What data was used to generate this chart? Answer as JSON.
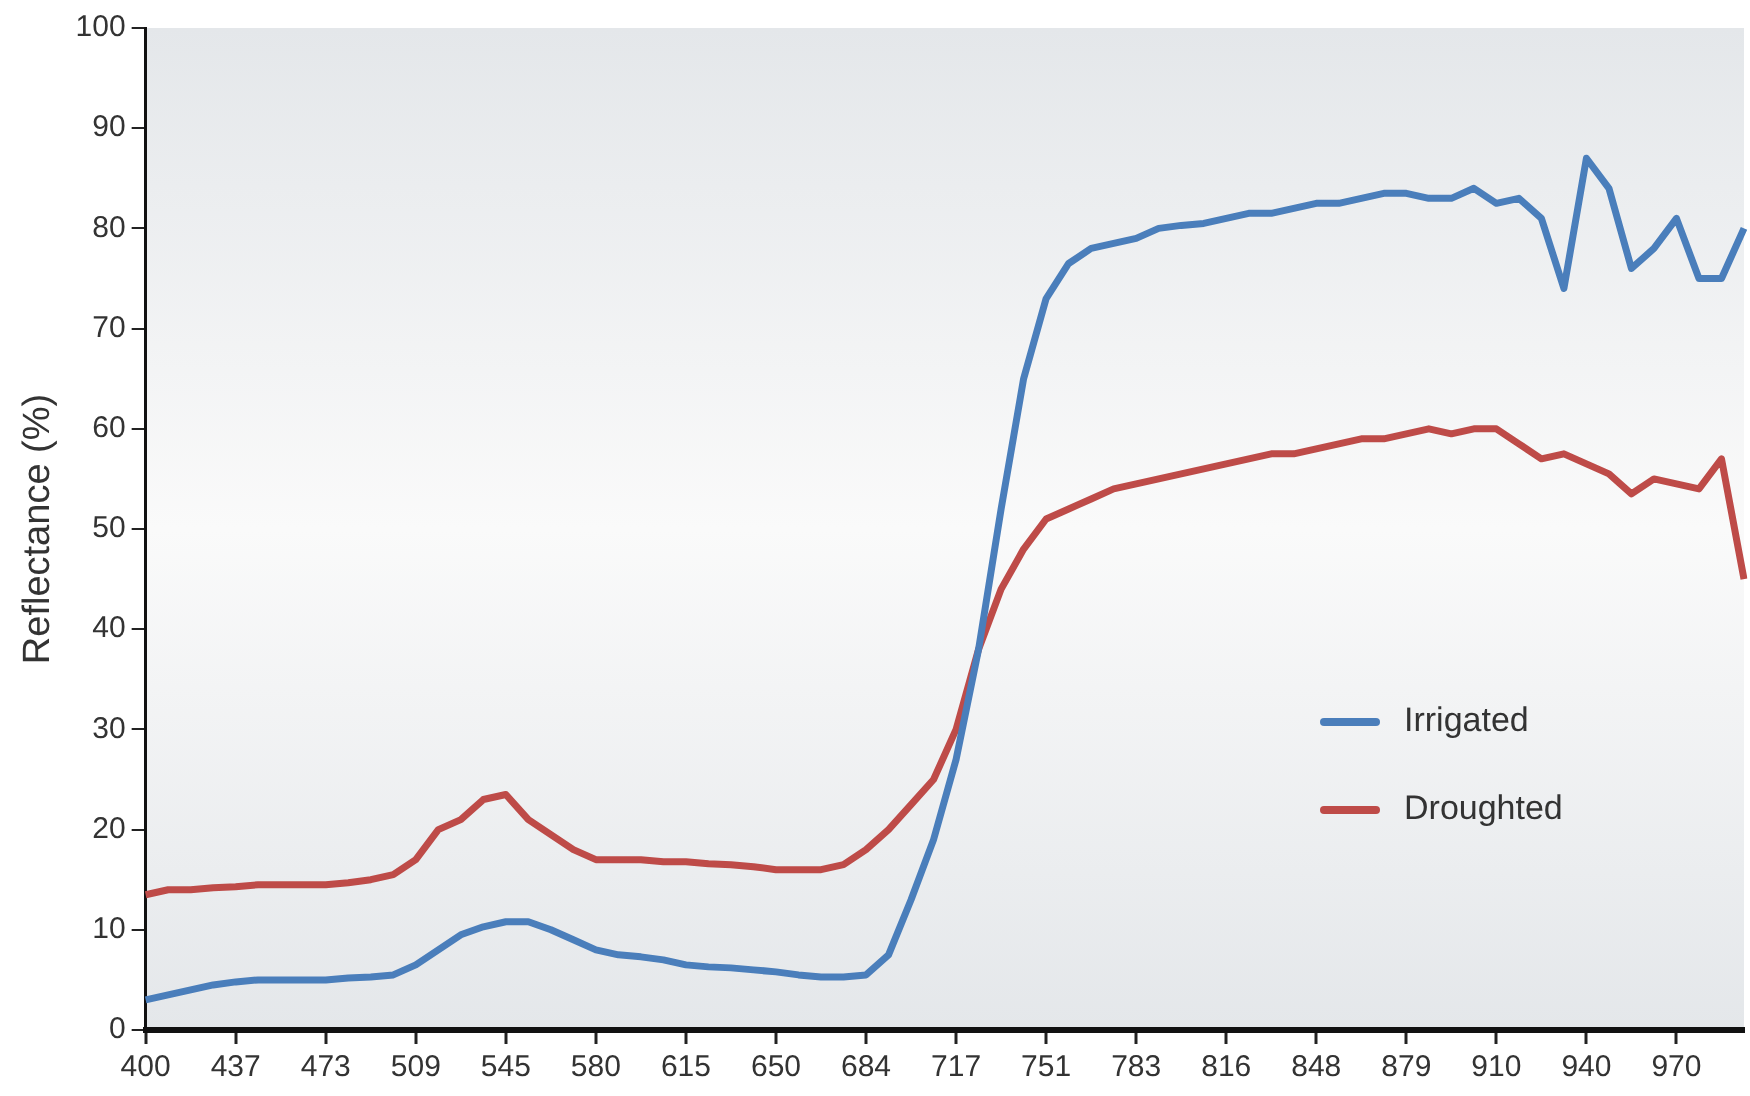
{
  "chart_data": {
    "type": "line",
    "ylabel": "Reflectance (%)",
    "categories": [
      "400",
      null,
      null,
      null,
      "437",
      null,
      null,
      null,
      "473",
      null,
      null,
      null,
      "509",
      null,
      null,
      null,
      "545",
      null,
      null,
      null,
      "580",
      null,
      null,
      null,
      "615",
      null,
      null,
      null,
      "650",
      null,
      null,
      null,
      "684",
      null,
      null,
      null,
      "717",
      null,
      null,
      null,
      "751",
      null,
      null,
      null,
      "783",
      null,
      null,
      null,
      "816",
      null,
      null,
      null,
      "848",
      null,
      null,
      null,
      "879",
      null,
      null,
      null,
      "910",
      null,
      null,
      null,
      "940",
      null,
      null,
      null,
      "970",
      null,
      null,
      null
    ],
    "series": [
      {
        "name": "Irrigated",
        "color": "#4a7ebb",
        "values": [
          3,
          3.5,
          4,
          4.5,
          4.8,
          5,
          5,
          5,
          5,
          5.2,
          5.3,
          5.5,
          6.5,
          8,
          9.5,
          10.3,
          10.8,
          10.8,
          10,
          9,
          8,
          7.5,
          7.3,
          7,
          6.5,
          6.3,
          6.2,
          6,
          5.8,
          5.5,
          5.3,
          5.3,
          5.5,
          7.5,
          13,
          19,
          27,
          38,
          52,
          65,
          73,
          76.5,
          78,
          78.5,
          79,
          80,
          80.3,
          80.5,
          81,
          81.5,
          81.5,
          82,
          82.5,
          82.5,
          83,
          83.5,
          83.5,
          83,
          83,
          84,
          82.5,
          83,
          81,
          74,
          87,
          84,
          76,
          78,
          81,
          75,
          75,
          80
        ]
      },
      {
        "name": "Droughted",
        "color": "#be4b48",
        "values": [
          13.5,
          14,
          14,
          14.2,
          14.3,
          14.5,
          14.5,
          14.5,
          14.5,
          14.7,
          15,
          15.5,
          17,
          20,
          21,
          23,
          23.5,
          21,
          19.5,
          18,
          17,
          17,
          17,
          16.8,
          16.8,
          16.6,
          16.5,
          16.3,
          16,
          16,
          16,
          16.5,
          18,
          20,
          22.5,
          25,
          30,
          38,
          44,
          48,
          51,
          52,
          53,
          54,
          54.5,
          55,
          55.5,
          56,
          56.5,
          57,
          57.5,
          57.5,
          58,
          58.5,
          59,
          59,
          59.5,
          60,
          59.5,
          60,
          60,
          58.5,
          57,
          57.5,
          56.5,
          55.5,
          53.5,
          55,
          54.5,
          54,
          57,
          45
        ]
      }
    ],
    "ylim": [
      0,
      100
    ],
    "yticks": [
      0,
      10,
      20,
      30,
      40,
      50,
      60,
      70,
      80,
      90,
      100
    ],
    "grid": false,
    "legend": "bottom right",
    "marker": "none",
    "line_style": "solid"
  }
}
